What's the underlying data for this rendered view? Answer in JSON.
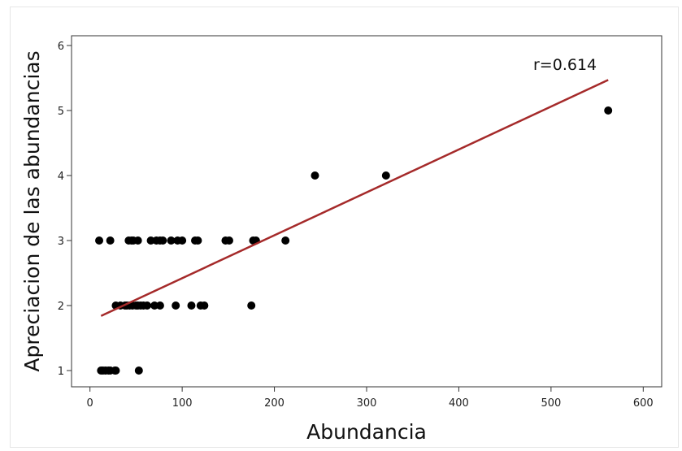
{
  "chart_data": {
    "type": "scatter",
    "title": "",
    "xlabel": "Abundancia",
    "ylabel": "Apreciacion de las abundancias",
    "xlim": [
      -20,
      620
    ],
    "ylim": [
      0.75,
      6.15
    ],
    "xticks": [
      0,
      100,
      200,
      300,
      400,
      500,
      600
    ],
    "yticks": [
      1,
      2,
      3,
      4,
      5,
      6
    ],
    "grid": false,
    "legend": "none",
    "annotation": "r=0.614",
    "colors": {
      "points": "#000000",
      "fit_line": "#a52a2a"
    },
    "series": [
      {
        "kind": "points",
        "x": [
          12,
          14,
          17,
          20,
          22,
          27,
          28,
          53,
          10,
          22,
          42,
          45,
          47,
          52,
          66,
          72,
          76,
          79,
          88,
          95,
          100,
          114,
          117,
          147,
          151,
          177,
          180,
          212,
          28,
          33,
          38,
          40,
          43,
          46,
          50,
          52,
          55,
          58,
          62,
          70,
          76,
          93,
          110,
          120,
          124,
          175,
          244,
          321,
          562
        ],
        "y": [
          1,
          1,
          1,
          1,
          1,
          1,
          1,
          1,
          3,
          3,
          3,
          3,
          3,
          3,
          3,
          3,
          3,
          3,
          3,
          3,
          3,
          3,
          3,
          3,
          3,
          3,
          3,
          3,
          2,
          2,
          2,
          2,
          2,
          2,
          2,
          2,
          2,
          2,
          2,
          2,
          2,
          2,
          2,
          2,
          2,
          2,
          4,
          4,
          5
        ]
      },
      {
        "kind": "fit-line",
        "x": [
          12,
          562
        ],
        "y": [
          1.84,
          5.47
        ]
      }
    ]
  }
}
